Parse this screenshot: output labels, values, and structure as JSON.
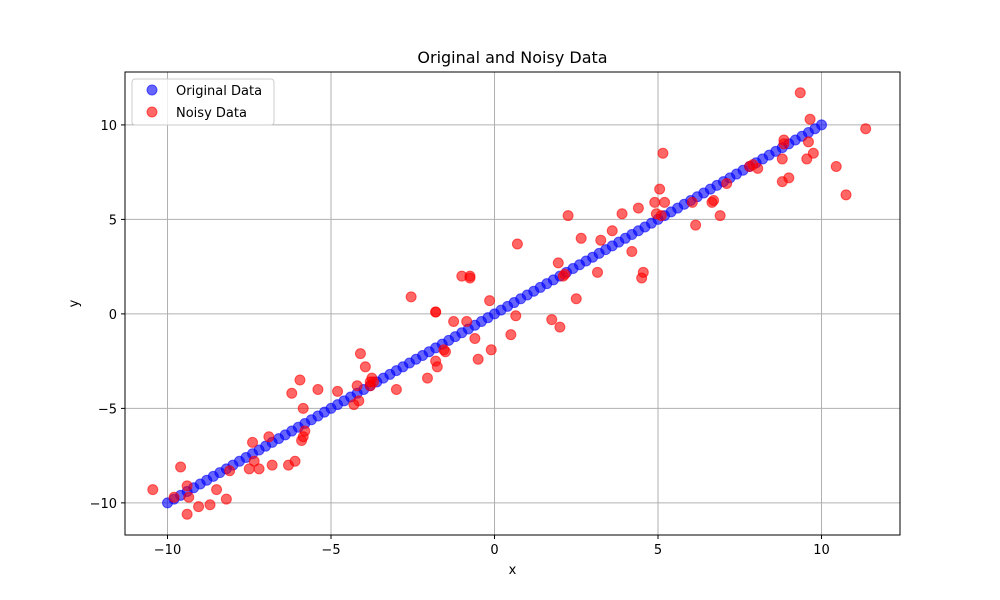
{
  "chart_data": {
    "type": "scatter",
    "title": "Original and Noisy Data",
    "xlabel": "x",
    "ylabel": "y",
    "xlim": [
      -11.3,
      12.4
    ],
    "ylim": [
      -11.7,
      12.8
    ],
    "xticks": [
      -10,
      -5,
      0,
      5,
      10
    ],
    "yticks": [
      -10,
      -5,
      0,
      5,
      10
    ],
    "grid": true,
    "legend_position": "top-left",
    "series": [
      {
        "name": "Original Data",
        "color": "#0000ff",
        "alpha": 0.6,
        "marker": "circle",
        "x": [
          -10,
          -9.8,
          -9.6,
          -9.4,
          -9.2,
          -9,
          -8.8,
          -8.6,
          -8.4,
          -8.2,
          -8,
          -7.8,
          -7.6,
          -7.4,
          -7.2,
          -7,
          -6.8,
          -6.6,
          -6.4,
          -6.2,
          -6,
          -5.8,
          -5.6,
          -5.4,
          -5.2,
          -5,
          -4.8,
          -4.6,
          -4.4,
          -4.2,
          -4,
          -3.8,
          -3.6,
          -3.4,
          -3.2,
          -3,
          -2.8,
          -2.6,
          -2.4,
          -2.2,
          -2,
          -1.8,
          -1.6,
          -1.4,
          -1.2,
          -1,
          -0.8,
          -0.6,
          -0.4,
          -0.2,
          0,
          0.2,
          0.4,
          0.6,
          0.8,
          1,
          1.2,
          1.4,
          1.6,
          1.8,
          2,
          2.2,
          2.4,
          2.6,
          2.8,
          3,
          3.2,
          3.4,
          3.6,
          3.8,
          4,
          4.2,
          4.4,
          4.6,
          4.8,
          5,
          5.2,
          5.4,
          5.6,
          5.8,
          6,
          6.2,
          6.4,
          6.6,
          6.8,
          7,
          7.2,
          7.4,
          7.6,
          7.8,
          8,
          8.2,
          8.4,
          8.6,
          8.8,
          9,
          9.2,
          9.4,
          9.6,
          9.8,
          10
        ],
        "y": [
          -10,
          -9.8,
          -9.6,
          -9.4,
          -9.2,
          -9,
          -8.8,
          -8.6,
          -8.4,
          -8.2,
          -8,
          -7.8,
          -7.6,
          -7.4,
          -7.2,
          -7,
          -6.8,
          -6.6,
          -6.4,
          -6.2,
          -6,
          -5.8,
          -5.6,
          -5.4,
          -5.2,
          -5,
          -4.8,
          -4.6,
          -4.4,
          -4.2,
          -4,
          -3.8,
          -3.6,
          -3.4,
          -3.2,
          -3,
          -2.8,
          -2.6,
          -2.4,
          -2.2,
          -2,
          -1.8,
          -1.6,
          -1.4,
          -1.2,
          -1,
          -0.8,
          -0.6,
          -0.4,
          -0.2,
          0,
          0.2,
          0.4,
          0.6,
          0.8,
          1,
          1.2,
          1.4,
          1.6,
          1.8,
          2,
          2.2,
          2.4,
          2.6,
          2.8,
          3,
          3.2,
          3.4,
          3.6,
          3.8,
          4,
          4.2,
          4.4,
          4.6,
          4.8,
          5,
          5.2,
          5.4,
          5.6,
          5.8,
          6,
          6.2,
          6.4,
          6.6,
          6.8,
          7,
          7.2,
          7.4,
          7.6,
          7.8,
          8,
          8.2,
          8.4,
          8.6,
          8.8,
          9,
          9.2,
          9.4,
          9.6,
          9.8,
          10
        ]
      },
      {
        "name": "Noisy Data",
        "color": "#ff0000",
        "alpha": 0.6,
        "marker": "circle",
        "x": [
          -10.45,
          -9.8,
          -9.6,
          -9.4,
          -9.4,
          -9.35,
          -9.05,
          -8.7,
          -8.5,
          -8.2,
          -8.1,
          -7.5,
          -7.4,
          -7.35,
          -7.2,
          -6.9,
          -6.8,
          -6.3,
          -6.2,
          -6.1,
          -5.95,
          -5.9,
          -5.85,
          -5.85,
          -5.8,
          -5.4,
          -4.8,
          -4.3,
          -4.2,
          -4.15,
          -4.1,
          -3.95,
          -3.8,
          -3.8,
          -3.75,
          -3.7,
          -3,
          -2.55,
          -2.05,
          -1.8,
          -1.8,
          -1.8,
          -1.75,
          -1.55,
          -1.5,
          -1.25,
          -1.0,
          -0.85,
          -0.75,
          -0.75,
          -0.6,
          -0.5,
          -0.15,
          -0.1,
          0.5,
          0.65,
          0.7,
          1.75,
          1.95,
          2.0,
          2.1,
          2.15,
          2.25,
          2.5,
          2.65,
          3.15,
          3.25,
          3.6,
          3.9,
          4.2,
          4.4,
          4.5,
          4.55,
          4.9,
          4.95,
          5.05,
          5.1,
          5.15,
          5.2,
          6.05,
          6.15,
          6.65,
          6.7,
          6.9,
          7.1,
          7.8,
          7.9,
          8.05,
          8.8,
          8.8,
          8.85,
          8.85,
          9.0,
          9.35,
          9.55,
          9.6,
          9.65,
          9.75,
          10.45,
          10.75,
          11.35
        ],
        "y": [
          -9.3,
          -9.7,
          -8.1,
          -10.6,
          -9.1,
          -9.7,
          -10.2,
          -10.1,
          -9.3,
          -9.8,
          -8.3,
          -8.2,
          -6.8,
          -7.8,
          -8.2,
          -6.5,
          -8.0,
          -8.0,
          -4.2,
          -7.8,
          -3.5,
          -6.7,
          -6.5,
          -5.0,
          -6.2,
          -4.0,
          -4.1,
          -4.8,
          -3.8,
          -4.6,
          -2.1,
          -2.8,
          -3.8,
          -3.6,
          -3.4,
          -3.6,
          -4.0,
          0.9,
          -3.4,
          0.1,
          0.1,
          -2.5,
          -2.8,
          -1.9,
          -2.0,
          -0.4,
          2.0,
          -0.4,
          2.0,
          1.9,
          -1.3,
          -2.4,
          0.7,
          -1.9,
          -1.1,
          -0.1,
          3.7,
          -0.3,
          2.7,
          -0.7,
          2.0,
          2.1,
          5.2,
          0.8,
          4.0,
          2.2,
          3.9,
          4.4,
          5.3,
          3.3,
          5.6,
          1.9,
          2.2,
          5.9,
          5.3,
          6.6,
          5.2,
          8.5,
          5.9,
          5.9,
          4.7,
          5.9,
          6.0,
          5.2,
          6.9,
          7.8,
          7.9,
          7.7,
          7.0,
          8.2,
          9.0,
          9.2,
          7.2,
          11.7,
          8.2,
          9.1,
          10.3,
          8.5,
          7.8,
          6.3,
          9.8
        ]
      }
    ]
  }
}
